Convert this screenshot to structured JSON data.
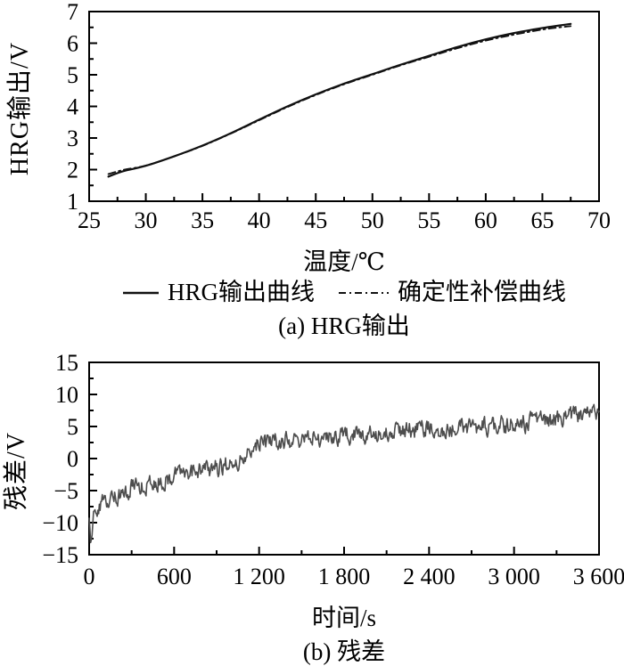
{
  "legend": {
    "series1": "HRG输出曲线",
    "series2": "确定性补偿曲线"
  },
  "colors": {
    "axis": "#000000",
    "hrg_curve": "#111111",
    "compensation_curve": "#111111",
    "residual_curve": "#4d4d4d"
  },
  "chart_data": [
    {
      "id": "hrg-output",
      "type": "line",
      "title": "(a) HRG输出",
      "xlabel": "温度/℃",
      "ylabel": "HRG输出/V",
      "xlim": [
        25,
        70
      ],
      "ylim": [
        1,
        7
      ],
      "xticks": [
        25,
        30,
        35,
        40,
        45,
        50,
        55,
        60,
        65,
        70
      ],
      "xtick_labels": [
        "25",
        "30",
        "35",
        "40",
        "45",
        "50",
        "55",
        "60",
        "65",
        "70"
      ],
      "yticks": [
        1,
        2,
        3,
        4,
        5,
        6,
        7
      ],
      "ytick_labels": [
        "1",
        "2",
        "3",
        "4",
        "5",
        "6",
        "7"
      ],
      "x_minor_step": 2.5,
      "y_minor_step": 0.5,
      "grid": false,
      "legend_position": "below",
      "series": [
        {
          "name": "HRG输出曲线",
          "style": "solid",
          "width": 2.2,
          "x": [
            26.7,
            28,
            30,
            32.5,
            35,
            37.5,
            40,
            42.5,
            45,
            47.5,
            50,
            52.5,
            55,
            57.5,
            60,
            62.5,
            65,
            66.5,
            67.5
          ],
          "y": [
            1.78,
            1.95,
            2.12,
            2.42,
            2.76,
            3.15,
            3.58,
            4.0,
            4.38,
            4.72,
            5.02,
            5.32,
            5.6,
            5.88,
            6.12,
            6.32,
            6.48,
            6.56,
            6.61
          ]
        },
        {
          "name": "确定性补偿曲线",
          "style": "dashdot",
          "width": 1.8,
          "x": [
            26.7,
            28,
            30,
            32.5,
            35,
            37.5,
            40,
            42.5,
            45,
            47.5,
            50,
            52.5,
            55,
            57.5,
            60,
            62.5,
            65,
            66.5,
            67.5
          ],
          "y": [
            1.86,
            1.99,
            2.13,
            2.42,
            2.75,
            3.14,
            3.56,
            3.98,
            4.36,
            4.7,
            5.0,
            5.3,
            5.57,
            5.84,
            6.08,
            6.27,
            6.43,
            6.5,
            6.54
          ]
        }
      ]
    },
    {
      "id": "residual",
      "type": "line",
      "title": "(b) 残差",
      "xlabel": "时间/s",
      "ylabel": "残差/V",
      "xlim": [
        0,
        3600
      ],
      "ylim": [
        -15,
        15
      ],
      "xticks": [
        0,
        600,
        1200,
        1800,
        2400,
        3000,
        3600
      ],
      "xtick_labels": [
        "0",
        "600",
        "1 200",
        "1 800",
        "2 400",
        "3 000",
        "3 600"
      ],
      "yticks": [
        -15,
        -10,
        -5,
        0,
        5,
        10,
        15
      ],
      "ytick_labels": [
        "−15",
        "−10",
        "−5",
        "0",
        "5",
        "10",
        "15"
      ],
      "x_minor_step": 300,
      "y_minor_step": 2.5,
      "grid": false,
      "series": [
        {
          "name": "残差",
          "style": "solid",
          "width": 1.6,
          "x": [
            0,
            12,
            35,
            70,
            120,
            200,
            300,
            400,
            500,
            620,
            750,
            880,
            980,
            1060,
            1110,
            1145,
            1220,
            1350,
            1500,
            1700,
            1900,
            2100,
            2300,
            2500,
            2700,
            2900,
            3100,
            3300,
            3500,
            3600
          ],
          "y": [
            -9.5,
            -12.9,
            -8.6,
            -7.0,
            -6.4,
            -5.9,
            -4.7,
            -4.05,
            -3.5,
            -2.7,
            -2.15,
            -1.45,
            -0.8,
            -0.35,
            -0.15,
            1.9,
            2.45,
            2.7,
            3.0,
            3.45,
            3.8,
            4.1,
            4.45,
            4.7,
            4.95,
            5.2,
            5.6,
            6.2,
            6.9,
            7.3
          ],
          "noise": {
            "seed": 20240717,
            "sigma": 1.0,
            "ar": 0.45,
            "n": 700
          }
        }
      ]
    }
  ]
}
